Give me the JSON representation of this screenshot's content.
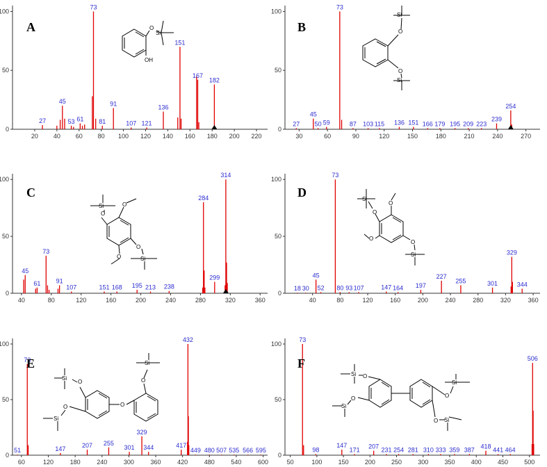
{
  "colors": {
    "peak": "#e00000",
    "label": "#2b2bd0",
    "axis": "#333333"
  },
  "chart_data": [
    {
      "type": "bar",
      "panel": "A",
      "xlim": [
        0,
        230
      ],
      "ylim": [
        0,
        105
      ],
      "xticks": [
        20,
        40,
        60,
        80,
        100,
        120,
        140,
        160,
        180,
        200,
        220
      ],
      "yticks": [
        0,
        50,
        100
      ],
      "marker": 182,
      "peaks": [
        {
          "x": 27,
          "y": 3.5,
          "label": "27"
        },
        {
          "x": 40,
          "y": 3
        },
        {
          "x": 43,
          "y": 8
        },
        {
          "x": 45,
          "y": 20,
          "label": "45"
        },
        {
          "x": 47,
          "y": 9
        },
        {
          "x": 53,
          "y": 3,
          "label": "53"
        },
        {
          "x": 55,
          "y": 2
        },
        {
          "x": 61,
          "y": 5,
          "label": "61"
        },
        {
          "x": 63,
          "y": 3
        },
        {
          "x": 65,
          "y": 4
        },
        {
          "x": 72,
          "y": 28
        },
        {
          "x": 73,
          "y": 100,
          "label": "73"
        },
        {
          "x": 75,
          "y": 9
        },
        {
          "x": 81,
          "y": 3,
          "label": "81"
        },
        {
          "x": 91,
          "y": 18,
          "label": "91"
        },
        {
          "x": 107,
          "y": 1.5,
          "label": "107"
        },
        {
          "x": 121,
          "y": 1.5,
          "label": "121"
        },
        {
          "x": 136,
          "y": 15,
          "label": "136"
        },
        {
          "x": 149,
          "y": 10
        },
        {
          "x": 151,
          "y": 70,
          "label": "151"
        },
        {
          "x": 152,
          "y": 9
        },
        {
          "x": 166,
          "y": 45
        },
        {
          "x": 167,
          "y": 42,
          "label": "167"
        },
        {
          "x": 168,
          "y": 6
        },
        {
          "x": 182,
          "y": 38,
          "label": "182"
        }
      ]
    },
    {
      "type": "bar",
      "panel": "B",
      "xlim": [
        15,
        285
      ],
      "ylim": [
        0,
        105
      ],
      "xticks": [
        30,
        60,
        90,
        120,
        150,
        180,
        210,
        240,
        270
      ],
      "yticks": [
        0,
        50,
        100
      ],
      "marker": 254,
      "peaks": [
        {
          "x": 27,
          "y": 1,
          "label": "27"
        },
        {
          "x": 45,
          "y": 9,
          "label": "45"
        },
        {
          "x": 50,
          "y": 1,
          "label": "50"
        },
        {
          "x": 59,
          "y": 2,
          "label": "59"
        },
        {
          "x": 73,
          "y": 100,
          "label": "73"
        },
        {
          "x": 75,
          "y": 8
        },
        {
          "x": 87,
          "y": 1,
          "label": "87"
        },
        {
          "x": 103,
          "y": 1,
          "label": "103"
        },
        {
          "x": 115,
          "y": 1,
          "label": "115"
        },
        {
          "x": 136,
          "y": 2,
          "label": "136"
        },
        {
          "x": 151,
          "y": 2,
          "label": "151"
        },
        {
          "x": 166,
          "y": 1,
          "label": "166"
        },
        {
          "x": 179,
          "y": 1,
          "label": "179"
        },
        {
          "x": 195,
          "y": 1,
          "label": "195"
        },
        {
          "x": 209,
          "y": 1,
          "label": "209"
        },
        {
          "x": 223,
          "y": 1,
          "label": "223"
        },
        {
          "x": 239,
          "y": 5,
          "label": "239"
        },
        {
          "x": 254,
          "y": 16,
          "label": "254"
        },
        {
          "x": 255,
          "y": 4
        }
      ]
    },
    {
      "type": "bar",
      "panel": "C",
      "xlim": [
        28,
        370
      ],
      "ylim": [
        0,
        105
      ],
      "xticks": [
        40,
        80,
        120,
        160,
        200,
        240,
        280,
        320,
        360
      ],
      "yticks": [
        0,
        50,
        100
      ],
      "marker": 314,
      "peaks": [
        {
          "x": 43,
          "y": 12
        },
        {
          "x": 45,
          "y": 16,
          "label": "45"
        },
        {
          "x": 59,
          "y": 4
        },
        {
          "x": 61,
          "y": 5,
          "label": "61"
        },
        {
          "x": 73,
          "y": 33,
          "label": "73"
        },
        {
          "x": 75,
          "y": 7
        },
        {
          "x": 77,
          "y": 3
        },
        {
          "x": 89,
          "y": 4
        },
        {
          "x": 91,
          "y": 7,
          "label": "91"
        },
        {
          "x": 107,
          "y": 1.5,
          "label": "107"
        },
        {
          "x": 151,
          "y": 1.5,
          "label": "151"
        },
        {
          "x": 168,
          "y": 1.5,
          "label": "168"
        },
        {
          "x": 195,
          "y": 3,
          "label": "195"
        },
        {
          "x": 213,
          "y": 1.5,
          "label": "213"
        },
        {
          "x": 238,
          "y": 2,
          "label": "238"
        },
        {
          "x": 283,
          "y": 5
        },
        {
          "x": 284,
          "y": 80,
          "label": "284"
        },
        {
          "x": 285,
          "y": 20
        },
        {
          "x": 286,
          "y": 5
        },
        {
          "x": 299,
          "y": 10,
          "label": "299"
        },
        {
          "x": 313,
          "y": 7
        },
        {
          "x": 314,
          "y": 100,
          "label": "314"
        },
        {
          "x": 315,
          "y": 27
        },
        {
          "x": 316,
          "y": 9
        }
      ]
    },
    {
      "type": "bar",
      "panel": "D",
      "xlim": [
        0,
        370
      ],
      "ylim": [
        0,
        105
      ],
      "xticks": [
        40,
        80,
        120,
        160,
        200,
        240,
        280,
        320,
        360
      ],
      "yticks": [
        0,
        50,
        100
      ],
      "peaks": [
        {
          "x": 18,
          "y": 0.5,
          "label": "18"
        },
        {
          "x": 30,
          "y": 0.5,
          "label": "30"
        },
        {
          "x": 45,
          "y": 12,
          "label": "45"
        },
        {
          "x": 52,
          "y": 1,
          "label": "52"
        },
        {
          "x": 73,
          "y": 100,
          "label": "73"
        },
        {
          "x": 80,
          "y": 1,
          "label": "80"
        },
        {
          "x": 93,
          "y": 1,
          "label": "93"
        },
        {
          "x": 107,
          "y": 1,
          "label": "107"
        },
        {
          "x": 147,
          "y": 1.5,
          "label": "147"
        },
        {
          "x": 164,
          "y": 1,
          "label": "164"
        },
        {
          "x": 197,
          "y": 3,
          "label": "197"
        },
        {
          "x": 227,
          "y": 11,
          "label": "227"
        },
        {
          "x": 255,
          "y": 7,
          "label": "255"
        },
        {
          "x": 301,
          "y": 5,
          "label": "301"
        },
        {
          "x": 328,
          "y": 6
        },
        {
          "x": 329,
          "y": 32,
          "label": "329"
        },
        {
          "x": 330,
          "y": 10
        },
        {
          "x": 344,
          "y": 4,
          "label": "344"
        }
      ]
    },
    {
      "type": "bar",
      "panel": "E",
      "xlim": [
        40,
        610
      ],
      "ylim": [
        0,
        105
      ],
      "xticks": [
        60,
        120,
        180,
        240,
        300,
        360,
        420,
        480,
        540,
        600
      ],
      "yticks": [
        0,
        50,
        100
      ],
      "peaks": [
        {
          "x": 51,
          "y": 0.5,
          "label": "51"
        },
        {
          "x": 73,
          "y": 82,
          "label": "73"
        },
        {
          "x": 75,
          "y": 9
        },
        {
          "x": 147,
          "y": 2,
          "label": "147"
        },
        {
          "x": 207,
          "y": 5,
          "label": "207"
        },
        {
          "x": 255,
          "y": 7,
          "label": "255"
        },
        {
          "x": 301,
          "y": 3,
          "label": "301"
        },
        {
          "x": 329,
          "y": 17,
          "label": "329"
        },
        {
          "x": 344,
          "y": 3,
          "label": "344"
        },
        {
          "x": 417,
          "y": 5,
          "label": "417"
        },
        {
          "x": 431,
          "y": 12
        },
        {
          "x": 432,
          "y": 100,
          "label": "432"
        },
        {
          "x": 433,
          "y": 35
        },
        {
          "x": 434,
          "y": 9
        },
        {
          "x": 449,
          "y": 0.5,
          "label": "449"
        },
        {
          "x": 480,
          "y": 0.5,
          "label": "480"
        },
        {
          "x": 507,
          "y": 0.5,
          "label": "507"
        },
        {
          "x": 535,
          "y": 0.5,
          "label": "535"
        },
        {
          "x": 566,
          "y": 0.5,
          "label": "566"
        },
        {
          "x": 595,
          "y": 0.5,
          "label": "595"
        }
      ]
    },
    {
      "type": "bar",
      "panel": "F",
      "xlim": [
        40,
        520
      ],
      "ylim": [
        0,
        105
      ],
      "xticks": [
        50,
        100,
        150,
        200,
        250,
        300,
        350,
        400,
        450,
        500
      ],
      "yticks": [
        0,
        50,
        100
      ],
      "peaks": [
        {
          "x": 73,
          "y": 100,
          "label": "73"
        },
        {
          "x": 75,
          "y": 9
        },
        {
          "x": 98,
          "y": 1,
          "label": "98"
        },
        {
          "x": 147,
          "y": 5,
          "label": "147"
        },
        {
          "x": 171,
          "y": 1,
          "label": "171"
        },
        {
          "x": 207,
          "y": 4,
          "label": "207"
        },
        {
          "x": 231,
          "y": 1,
          "label": "231"
        },
        {
          "x": 254,
          "y": 1,
          "label": "254"
        },
        {
          "x": 281,
          "y": 1,
          "label": "281"
        },
        {
          "x": 310,
          "y": 1,
          "label": "310"
        },
        {
          "x": 333,
          "y": 1,
          "label": "333"
        },
        {
          "x": 359,
          "y": 1,
          "label": "359"
        },
        {
          "x": 387,
          "y": 1,
          "label": "387"
        },
        {
          "x": 418,
          "y": 4,
          "label": "418"
        },
        {
          "x": 441,
          "y": 1,
          "label": "441"
        },
        {
          "x": 464,
          "y": 1,
          "label": "464"
        },
        {
          "x": 505,
          "y": 10
        },
        {
          "x": 506,
          "y": 83,
          "label": "506"
        },
        {
          "x": 507,
          "y": 40
        },
        {
          "x": 508,
          "y": 10
        }
      ]
    }
  ]
}
